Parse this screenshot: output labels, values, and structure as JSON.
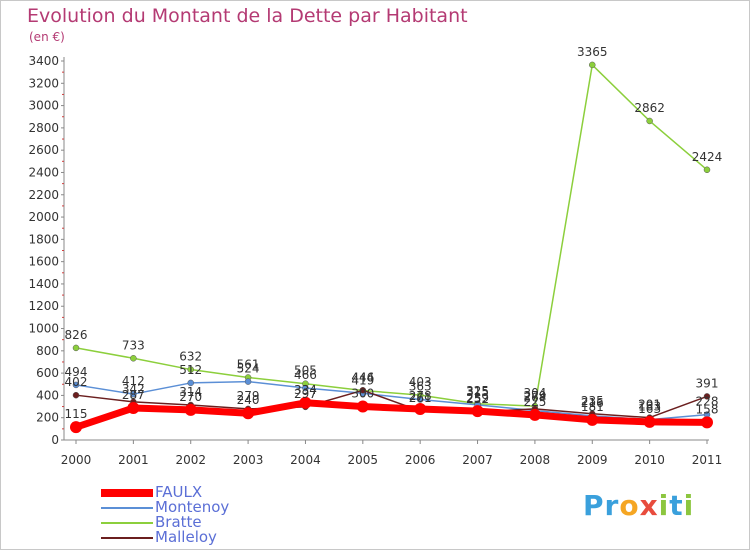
{
  "chart_data": {
    "type": "line",
    "title": "Evolution du Montant de la Dette par Habitant",
    "subtitle": "(en €)",
    "xlabel": "",
    "ylabel": "",
    "x": [
      "2000",
      "2001",
      "2002",
      "2003",
      "2004",
      "2005",
      "2006",
      "2007",
      "2008",
      "2009",
      "2010",
      "2011"
    ],
    "ylim": [
      0,
      3400
    ],
    "yticks": [
      0,
      200,
      400,
      600,
      800,
      1000,
      1200,
      1400,
      1600,
      1800,
      2000,
      2200,
      2400,
      2600,
      2800,
      3000,
      3200,
      3400
    ],
    "ytick_labels": [
      "0",
      "200",
      "400",
      "600",
      "800",
      "1000",
      "1200",
      "1400",
      "1600",
      "1800",
      "2000",
      "2200",
      "2400",
      "2600",
      "2800",
      "3000",
      "3200",
      "3400"
    ],
    "grid": false,
    "legend": "bottom-left",
    "series": [
      {
        "name": "FAULX",
        "color": "#ff0000",
        "values": [
          115,
          287,
          270,
          240,
          334,
          300,
          278,
          259,
          225,
          181,
          163,
          158
        ],
        "labels": [
          "115",
          "287",
          "270",
          "240",
          "334",
          "300",
          "278",
          "259",
          "225",
          "181",
          "163",
          "158"
        ]
      },
      {
        "name": "Montenoy",
        "color": "#5b8fd6",
        "values": [
          494,
          412,
          512,
          524,
          466,
          419,
          363,
          315,
          264,
          216,
          183,
          228
        ],
        "labels": [
          "494",
          "412",
          "512",
          "524",
          "466",
          "419",
          "363",
          "315",
          "264",
          "216",
          "183",
          "228"
        ]
      },
      {
        "name": "Bratte",
        "color": "#8ccf3c",
        "values": [
          826,
          733,
          632,
          561,
          505,
          444,
          403,
          325,
          304,
          3365,
          2862,
          2424
        ],
        "labels": [
          "826",
          "733",
          "632",
          "561",
          "505",
          "444",
          "403",
          "325",
          "304",
          "3365",
          "2862",
          "2424"
        ]
      },
      {
        "name": "Malleloy",
        "color": "#6b1f1f",
        "values": [
          402,
          342,
          314,
          279,
          297,
          446,
          261,
          252,
          279,
          235,
          201,
          391
        ],
        "labels": [
          "402",
          "342",
          "314",
          "279",
          "297",
          "446",
          "261",
          "252",
          "279",
          "235",
          "201",
          "391"
        ]
      }
    ]
  },
  "brand": {
    "letters": [
      "P",
      "r",
      "o",
      "x",
      "i",
      "t",
      "i"
    ],
    "colors": [
      "#3aa0dc",
      "#3aa0dc",
      "#f5a623",
      "#e84c3d",
      "#8cc63f",
      "#3aa0dc",
      "#8cc63f"
    ]
  }
}
